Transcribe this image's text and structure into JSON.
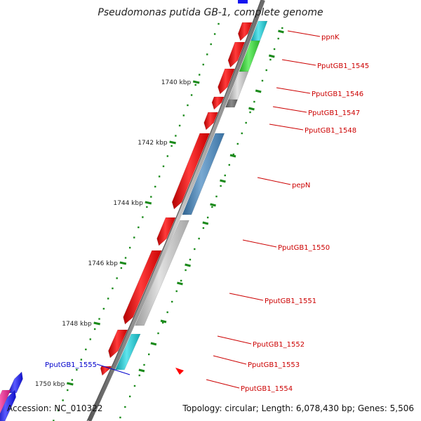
{
  "title": "Pseudomonas putida GB-1, complete genome",
  "footer": {
    "accession": "Accession: NC_010322",
    "topology": "Topology: circular; Length: 6,078,430 bp; Genes: 5,506"
  },
  "colors": {
    "forward_cds": "#ff0000",
    "backbone": "#777777",
    "tick": "#1a8a1a",
    "label_red": "#cc0000",
    "label_blue": "#0000cc",
    "cog_cyan": "#19c8d2",
    "cog_green": "#3dd13d",
    "cog_grey": "#bdbdbd",
    "cog_steelblue": "#4682b4",
    "cog_blue": "#1414f0",
    "cog_pink": "#ee1c8c"
  },
  "scale_labels": [
    "1740 kbp",
    "1742 kbp",
    "1744 kbp",
    "1746 kbp",
    "1748 kbp",
    "1750 kbp"
  ],
  "gene_labels": [
    {
      "text": "ppnK",
      "strand": "forward"
    },
    {
      "text": "PputGB1_1545",
      "strand": "forward"
    },
    {
      "text": "PputGB1_1546",
      "strand": "forward"
    },
    {
      "text": "PputGB1_1547",
      "strand": "forward"
    },
    {
      "text": "PputGB1_1548",
      "strand": "forward"
    },
    {
      "text": "pepN",
      "strand": "forward"
    },
    {
      "text": "PputGB1_1550",
      "strand": "forward"
    },
    {
      "text": "PputGB1_1551",
      "strand": "forward"
    },
    {
      "text": "PputGB1_1552",
      "strand": "forward"
    },
    {
      "text": "PputGB1_1553",
      "strand": "forward"
    },
    {
      "text": "PputGB1_1554",
      "strand": "forward"
    },
    {
      "text": "PputGB1_1555",
      "strand": "reverse"
    }
  ]
}
